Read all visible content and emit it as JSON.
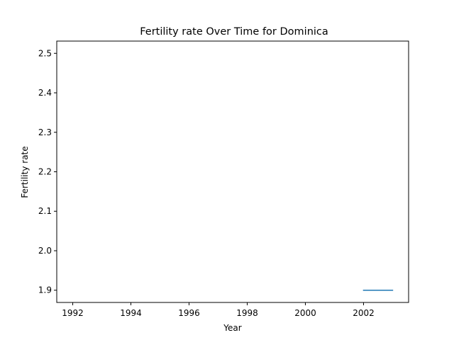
{
  "chart_data": {
    "type": "line",
    "title": "Fertility rate Over Time for Dominica",
    "xlabel": "Year",
    "ylabel": "Fertility rate",
    "xlim": [
      1991.45,
      2003.55
    ],
    "ylim": [
      1.869,
      2.531
    ],
    "x_ticks": [
      1992,
      1994,
      1996,
      1998,
      2000,
      2002
    ],
    "y_ticks": [
      1.9,
      2.0,
      2.1,
      2.2,
      2.3,
      2.4,
      2.5
    ],
    "y_tick_labels": [
      "1.9",
      "2.0",
      "2.1",
      "2.2",
      "2.3",
      "2.4",
      "2.5"
    ],
    "grid": false,
    "series": [
      {
        "color": "#1f77b4",
        "x": [
          2002,
          2003
        ],
        "y": [
          1.9,
          1.9
        ]
      }
    ]
  }
}
